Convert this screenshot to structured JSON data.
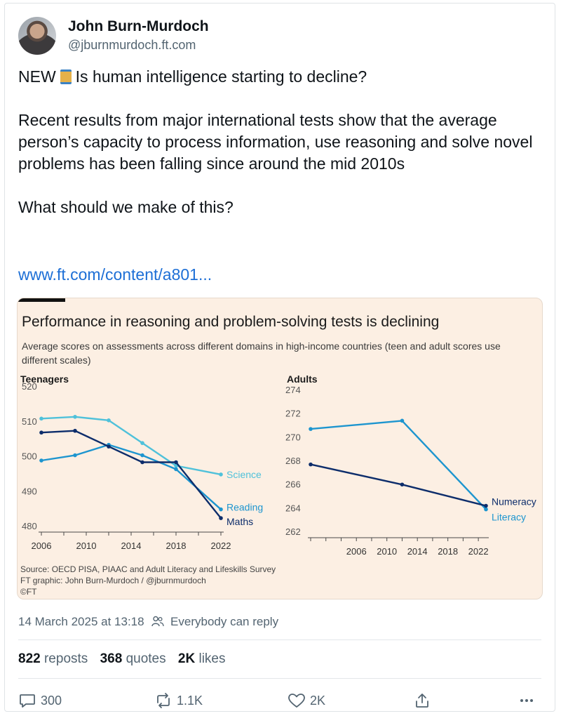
{
  "author": {
    "name": "John Burn-Murdoch",
    "handle": "@jburnmurdoch.ft.com"
  },
  "tweet": {
    "line1_prefix": "NEW",
    "line1_suffix": "Is human intelligence starting to decline?",
    "para2": "Recent results from major international tests show that the average person’s capacity to process information, use reasoning and solve novel problems has been falling since around the mid 2010s",
    "para3": "What should we make of this?",
    "link": "www.ft.com/content/a801...",
    "thread_icon": "spool-of-thread-icon"
  },
  "chart_card": {
    "title": "Performance in reasoning and problem-solving tests is declining",
    "subtitle": "Average scores on assessments across different domains in high-income countries (teen and adult scores use different scales)",
    "source_line1": "Source: OECD PISA, PIAAC and Adult Literacy and Lifeskills Survey",
    "source_line2": "FT graphic: John Burn-Murdoch / @jburnmurdoch",
    "source_line3": "©FT"
  },
  "chart_data": [
    {
      "type": "line",
      "title": "Teenagers",
      "ylim": [
        480,
        520
      ],
      "yticks": [
        480,
        490,
        500,
        510,
        520
      ],
      "xticks": [
        2006,
        2010,
        2014,
        2018,
        2022
      ],
      "xlim": [
        2006,
        2022
      ],
      "grid": false,
      "series": [
        {
          "name": "Science",
          "color": "#4fc1da",
          "x": [
            2006,
            2009,
            2012,
            2015,
            2018,
            2022
          ],
          "y": [
            512.5,
            513,
            512,
            505.5,
            499,
            496.5
          ]
        },
        {
          "name": "Reading",
          "color": "#1d95cf",
          "x": [
            2006,
            2009,
            2012,
            2015,
            2018,
            2022
          ],
          "y": [
            500.5,
            502,
            505,
            502,
            498,
            486.5
          ]
        },
        {
          "name": "Maths",
          "color": "#0d2d6b",
          "x": [
            2006,
            2009,
            2012,
            2015,
            2018,
            2022
          ],
          "y": [
            508.5,
            509,
            504.5,
            500,
            500,
            484
          ]
        }
      ]
    },
    {
      "type": "line",
      "title": "Adults",
      "ylim": [
        262,
        274
      ],
      "yticks": [
        262,
        264,
        266,
        268,
        270,
        272,
        274
      ],
      "xticks": [
        2006,
        2010,
        2014,
        2018,
        2022
      ],
      "xlim": [
        2000,
        2023
      ],
      "grid": false,
      "series": [
        {
          "name": "Literacy",
          "color": "#1d95cf",
          "x": [
            2000,
            2012,
            2023
          ],
          "y": [
            271.2,
            271.9,
            264.4
          ]
        },
        {
          "name": "Numeracy",
          "color": "#0d2d6b",
          "x": [
            2000,
            2012,
            2023
          ],
          "y": [
            268.2,
            266.5,
            264.7
          ]
        }
      ]
    }
  ],
  "meta": {
    "timestamp": "14 March 2025 at 13:18",
    "reply_setting": "Everybody can reply"
  },
  "stats": {
    "reposts_count": "822",
    "reposts_label": "reposts",
    "quotes_count": "368",
    "quotes_label": "quotes",
    "likes_count": "2K",
    "likes_label": "likes"
  },
  "actions": {
    "replies": "300",
    "reposts": "1.1K",
    "likes": "2K"
  }
}
